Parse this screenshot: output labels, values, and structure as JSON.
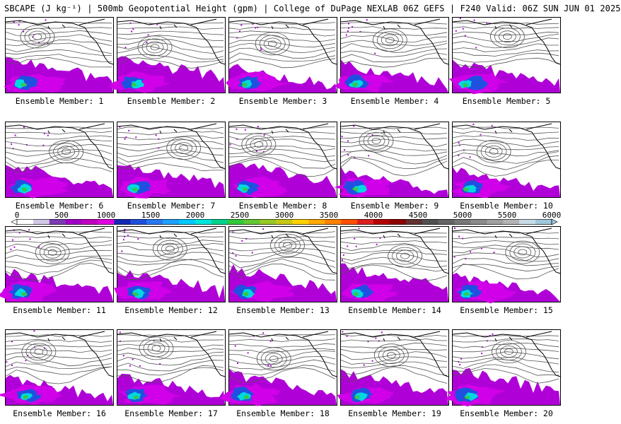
{
  "title": "SBCAPE (J kg⁻¹) | 500mb Geopotential Height (gpm) | College of DuPage NEXLAB 06Z GEFS | F240 Valid: 06Z SUN JUN 01 2025",
  "colorbar": {
    "tick_labels": [
      "0",
      "500",
      "1000",
      "1500",
      "2000",
      "2500",
      "3000",
      "3500",
      "4000",
      "4500",
      "5000",
      "5500",
      "6000"
    ],
    "colors": [
      "#ffffff",
      "#d2c8e6",
      "#7a3cb4",
      "#a000c8",
      "#c000c0",
      "#e000e0",
      "#1428b4",
      "#1e50dc",
      "#2878f0",
      "#1ea0ff",
      "#00c8ff",
      "#00e6dc",
      "#00d28c",
      "#32c83c",
      "#64c832",
      "#96c828",
      "#c8c814",
      "#ffd200",
      "#ffaa00",
      "#ff8200",
      "#ff5000",
      "#dc1e1e",
      "#b40000",
      "#8c0000",
      "#643232",
      "#505050",
      "#646464",
      "#787878",
      "#8c8c8c",
      "#a0a0a0",
      "#b4b4b4",
      "#c8dce6",
      "#a0c8dc"
    ]
  },
  "map_colors": {
    "purple": "#b000d8",
    "magenta": "#d000e8",
    "blue": "#2050e0",
    "cyan": "#00d8e0",
    "green": "#30c850",
    "contour": "#555555",
    "coast": "#000000"
  },
  "panels": [
    {
      "label": "Ensemble Member: 1"
    },
    {
      "label": "Ensemble Member: 2"
    },
    {
      "label": "Ensemble Member: 3"
    },
    {
      "label": "Ensemble Member: 4"
    },
    {
      "label": "Ensemble Member: 5"
    },
    {
      "label": "Ensemble Member: 6"
    },
    {
      "label": "Ensemble Member: 7"
    },
    {
      "label": "Ensemble Member: 8"
    },
    {
      "label": "Ensemble Member: 9"
    },
    {
      "label": "Ensemble Member: 10"
    },
    {
      "label": "Ensemble Member: 11"
    },
    {
      "label": "Ensemble Member: 12"
    },
    {
      "label": "Ensemble Member: 13"
    },
    {
      "label": "Ensemble Member: 14"
    },
    {
      "label": "Ensemble Member: 15"
    },
    {
      "label": "Ensemble Member: 16"
    },
    {
      "label": "Ensemble Member: 17"
    },
    {
      "label": "Ensemble Member: 18"
    },
    {
      "label": "Ensemble Member: 19"
    },
    {
      "label": "Ensemble Member: 20"
    }
  ]
}
